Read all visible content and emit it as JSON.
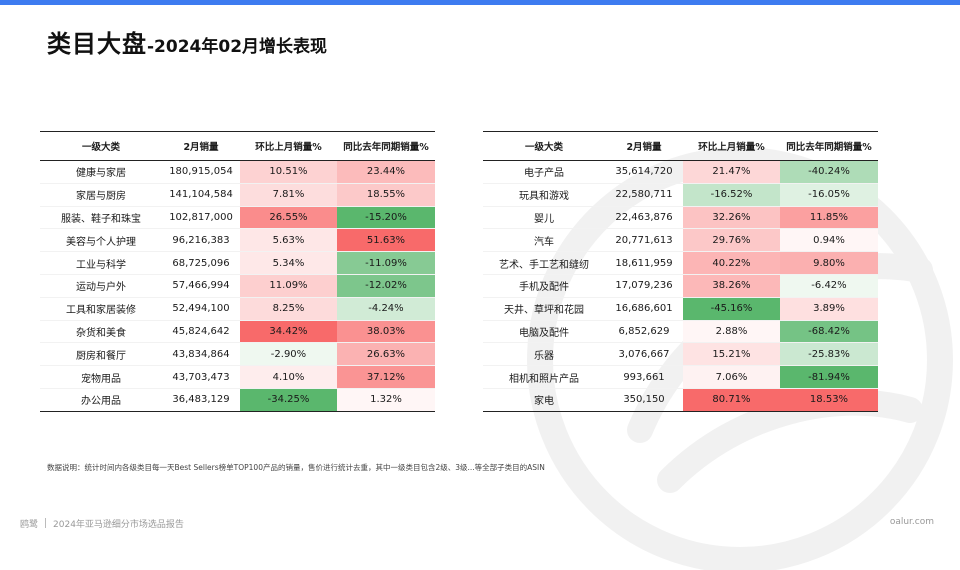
{
  "title": {
    "main": "类目大盘",
    "sub": "-2024年02月增长表现"
  },
  "columns": [
    "一级大类",
    "2月销量",
    "环比上月销量%",
    "同比去年同期销量%"
  ],
  "left_table": [
    {
      "category": "健康与家居",
      "sales": "180,915,054",
      "mom": "10.51%",
      "yoy": "23.44%"
    },
    {
      "category": "家居与厨房",
      "sales": "141,104,584",
      "mom": "7.81%",
      "yoy": "18.55%"
    },
    {
      "category": "服装、鞋子和珠宝",
      "sales": "102,817,000",
      "mom": "26.55%",
      "yoy": "-15.20%"
    },
    {
      "category": "美容与个人护理",
      "sales": "96,216,383",
      "mom": "5.63%",
      "yoy": "51.63%"
    },
    {
      "category": "工业与科学",
      "sales": "68,725,096",
      "mom": "5.34%",
      "yoy": "-11.09%"
    },
    {
      "category": "运动与户外",
      "sales": "57,466,994",
      "mom": "11.09%",
      "yoy": "-12.02%"
    },
    {
      "category": "工具和家居装修",
      "sales": "52,494,100",
      "mom": "8.25%",
      "yoy": "-4.24%"
    },
    {
      "category": "杂货和美食",
      "sales": "45,824,642",
      "mom": "34.42%",
      "yoy": "38.03%"
    },
    {
      "category": "厨房和餐厅",
      "sales": "43,834,864",
      "mom": "-2.90%",
      "yoy": "26.63%"
    },
    {
      "category": "宠物用品",
      "sales": "43,703,473",
      "mom": "4.10%",
      "yoy": "37.12%"
    },
    {
      "category": "办公用品",
      "sales": "36,483,129",
      "mom": "-34.25%",
      "yoy": "1.32%"
    }
  ],
  "right_table": [
    {
      "category": "电子产品",
      "sales": "35,614,720",
      "mom": "21.47%",
      "yoy": "-40.24%"
    },
    {
      "category": "玩具和游戏",
      "sales": "22,580,711",
      "mom": "-16.52%",
      "yoy": "-16.05%"
    },
    {
      "category": "婴儿",
      "sales": "22,463,876",
      "mom": "32.26%",
      "yoy": "11.85%"
    },
    {
      "category": "汽车",
      "sales": "20,771,613",
      "mom": "29.76%",
      "yoy": "0.94%"
    },
    {
      "category": "艺术、手工艺和缝纫",
      "sales": "18,611,959",
      "mom": "40.22%",
      "yoy": "9.80%"
    },
    {
      "category": "手机及配件",
      "sales": "17,079,236",
      "mom": "38.26%",
      "yoy": "-6.42%"
    },
    {
      "category": "天井、草坪和花园",
      "sales": "16,686,601",
      "mom": "-45.16%",
      "yoy": "3.89%"
    },
    {
      "category": "电脑及配件",
      "sales": "6,852,629",
      "mom": "2.88%",
      "yoy": "-68.42%"
    },
    {
      "category": "乐器",
      "sales": "3,076,667",
      "mom": "15.21%",
      "yoy": "-25.83%"
    },
    {
      "category": "相机和照片产品",
      "sales": "993,661",
      "mom": "7.06%",
      "yoy": "-81.94%"
    },
    {
      "category": "家电",
      "sales": "350,150",
      "mom": "80.71%",
      "yoy": "18.53%"
    }
  ],
  "colors": {
    "positive": "#f86a6a",
    "negative": "#5ab76d",
    "accent_bar": "#3d7bf0"
  },
  "note": "数据说明：统计时间内各级类目每一天Best Sellers榜单TOP100产品的销量，售价进行统计去重，其中一级类目包含2级、3级...等全部子类目的ASIN",
  "footer": {
    "brand": "鸥鹭",
    "report": "2024年亚马逊细分市场选品报告",
    "site": "oalur.com"
  }
}
